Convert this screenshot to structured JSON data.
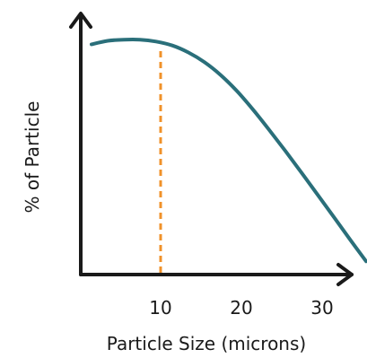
{
  "chart_data": {
    "type": "line",
    "xlabel": "Particle Size (microns)",
    "ylabel": "% of Particle",
    "xticks": [
      10,
      20,
      30
    ],
    "x_range": [
      0,
      35
    ],
    "y_range": [
      0,
      100
    ],
    "series": [
      {
        "x": [
          0,
          2,
          4,
          6,
          8,
          10,
          12,
          14,
          16,
          18,
          20,
          22,
          24,
          26,
          28,
          30,
          32,
          34
        ],
        "y": [
          96,
          97.5,
          98,
          98,
          97.2,
          95.5,
          92.5,
          88.3,
          82.8,
          76,
          68,
          59.3,
          50.3,
          41,
          31.5,
          22,
          12.4,
          3
        ]
      }
    ],
    "annotations": [
      {
        "type": "vertical-dashed-line",
        "x": 10
      }
    ],
    "colors": {
      "curve": "#2a6f7a",
      "marker_line": "#f0922a",
      "axes": "#1a1a1a"
    }
  }
}
